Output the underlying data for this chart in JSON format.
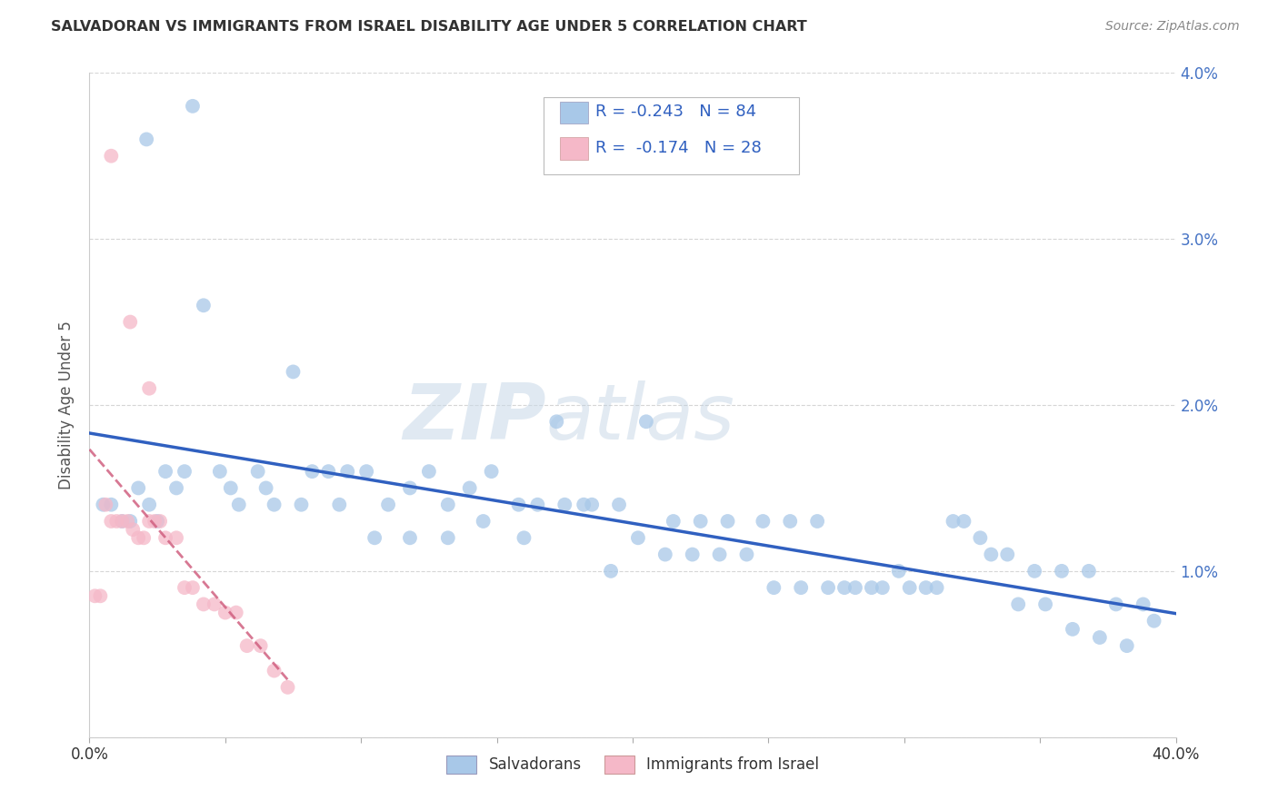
{
  "title": "SALVADORAN VS IMMIGRANTS FROM ISRAEL DISABILITY AGE UNDER 5 CORRELATION CHART",
  "source": "Source: ZipAtlas.com",
  "ylabel": "Disability Age Under 5",
  "xlim": [
    0.0,
    0.4
  ],
  "ylim": [
    0.0,
    0.04
  ],
  "yticks": [
    0.0,
    0.01,
    0.02,
    0.03,
    0.04
  ],
  "ytick_labels_right": [
    "",
    "1.0%",
    "2.0%",
    "3.0%",
    "4.0%"
  ],
  "xticks_minor": [
    0.0,
    0.05,
    0.1,
    0.15,
    0.2,
    0.25,
    0.3,
    0.35,
    0.4
  ],
  "xtick_label_left": "0.0%",
  "xtick_label_right": "40.0%",
  "blue_color": "#a8c8e8",
  "pink_color": "#f5b8c8",
  "blue_line_color": "#3060c0",
  "pink_line_color": "#d06080",
  "R_blue": -0.243,
  "N_blue": 84,
  "R_pink": -0.174,
  "N_pink": 28,
  "legend_label_blue": "Salvadorans",
  "legend_label_pink": "Immigrants from Israel",
  "watermark_zip": "ZIP",
  "watermark_atlas": "atlas",
  "blue_points_x": [
    0.021,
    0.038,
    0.005,
    0.008,
    0.012,
    0.015,
    0.018,
    0.022,
    0.025,
    0.028,
    0.032,
    0.035,
    0.042,
    0.048,
    0.055,
    0.062,
    0.068,
    0.075,
    0.082,
    0.088,
    0.095,
    0.102,
    0.11,
    0.118,
    0.125,
    0.132,
    0.14,
    0.148,
    0.158,
    0.165,
    0.175,
    0.185,
    0.195,
    0.205,
    0.215,
    0.225,
    0.235,
    0.248,
    0.258,
    0.268,
    0.278,
    0.288,
    0.298,
    0.308,
    0.318,
    0.328,
    0.338,
    0.348,
    0.358,
    0.368,
    0.378,
    0.388,
    0.052,
    0.065,
    0.078,
    0.092,
    0.105,
    0.118,
    0.132,
    0.145,
    0.16,
    0.172,
    0.182,
    0.192,
    0.202,
    0.212,
    0.222,
    0.232,
    0.242,
    0.252,
    0.262,
    0.272,
    0.282,
    0.292,
    0.302,
    0.312,
    0.322,
    0.332,
    0.342,
    0.352,
    0.362,
    0.372,
    0.382,
    0.392
  ],
  "blue_points_y": [
    0.036,
    0.038,
    0.014,
    0.014,
    0.013,
    0.013,
    0.015,
    0.014,
    0.013,
    0.016,
    0.015,
    0.016,
    0.026,
    0.016,
    0.014,
    0.016,
    0.014,
    0.022,
    0.016,
    0.016,
    0.016,
    0.016,
    0.014,
    0.015,
    0.016,
    0.014,
    0.015,
    0.016,
    0.014,
    0.014,
    0.014,
    0.014,
    0.014,
    0.019,
    0.013,
    0.013,
    0.013,
    0.013,
    0.013,
    0.013,
    0.009,
    0.009,
    0.01,
    0.009,
    0.013,
    0.012,
    0.011,
    0.01,
    0.01,
    0.01,
    0.008,
    0.008,
    0.015,
    0.015,
    0.014,
    0.014,
    0.012,
    0.012,
    0.012,
    0.013,
    0.012,
    0.019,
    0.014,
    0.01,
    0.012,
    0.011,
    0.011,
    0.011,
    0.011,
    0.009,
    0.009,
    0.009,
    0.009,
    0.009,
    0.009,
    0.009,
    0.013,
    0.011,
    0.008,
    0.008,
    0.0065,
    0.006,
    0.0055,
    0.007
  ],
  "pink_points_x": [
    0.002,
    0.004,
    0.006,
    0.008,
    0.01,
    0.012,
    0.014,
    0.016,
    0.018,
    0.02,
    0.022,
    0.024,
    0.026,
    0.028,
    0.032,
    0.035,
    0.038,
    0.042,
    0.046,
    0.05,
    0.054,
    0.058,
    0.063,
    0.068,
    0.073,
    0.008,
    0.015,
    0.022
  ],
  "pink_points_y": [
    0.0085,
    0.0085,
    0.014,
    0.013,
    0.013,
    0.013,
    0.013,
    0.0125,
    0.012,
    0.012,
    0.013,
    0.013,
    0.013,
    0.012,
    0.012,
    0.009,
    0.009,
    0.008,
    0.008,
    0.0075,
    0.0075,
    0.0055,
    0.0055,
    0.004,
    0.003,
    0.035,
    0.025,
    0.021
  ]
}
